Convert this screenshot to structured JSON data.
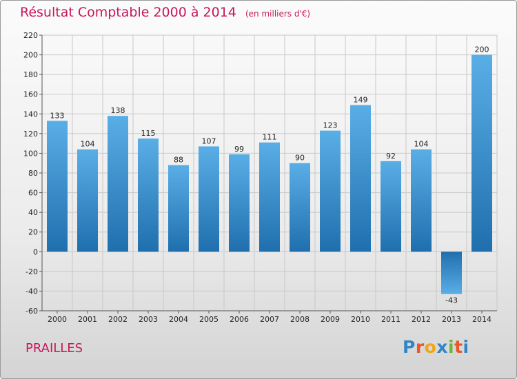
{
  "chart_data": {
    "type": "bar",
    "title": "Résultat Comptable 2000 à 2014",
    "unit_label": "(en milliers d'€)",
    "categories": [
      "2000",
      "2001",
      "2002",
      "2003",
      "2004",
      "2005",
      "2006",
      "2007",
      "2008",
      "2009",
      "2010",
      "2011",
      "2012",
      "2013",
      "2014"
    ],
    "values": [
      133,
      104,
      138,
      115,
      88,
      107,
      99,
      111,
      90,
      123,
      149,
      92,
      104,
      -43,
      200
    ],
    "ylim": [
      -60,
      220
    ],
    "yticks": [
      -60,
      -40,
      -20,
      0,
      20,
      40,
      60,
      80,
      100,
      120,
      140,
      160,
      180,
      200,
      220
    ],
    "grid": true,
    "xlabel": "",
    "ylabel": ""
  },
  "footer": {
    "commune": "PRAILLES",
    "logo": "Proxiti",
    "logo_letters": [
      "P",
      "r",
      "o",
      "x",
      "i",
      "t",
      "i"
    ],
    "logo_colors": [
      "#2f86c6",
      "#e8562a",
      "#f2a516",
      "#2f86c6",
      "#6bb33a",
      "#e8562a",
      "#2f86c6"
    ]
  },
  "colors": {
    "bar_dark": "#1f6fae",
    "bar_light": "#5aaee6",
    "grid": "#c8c8c8",
    "accent": "#c8175a"
  }
}
